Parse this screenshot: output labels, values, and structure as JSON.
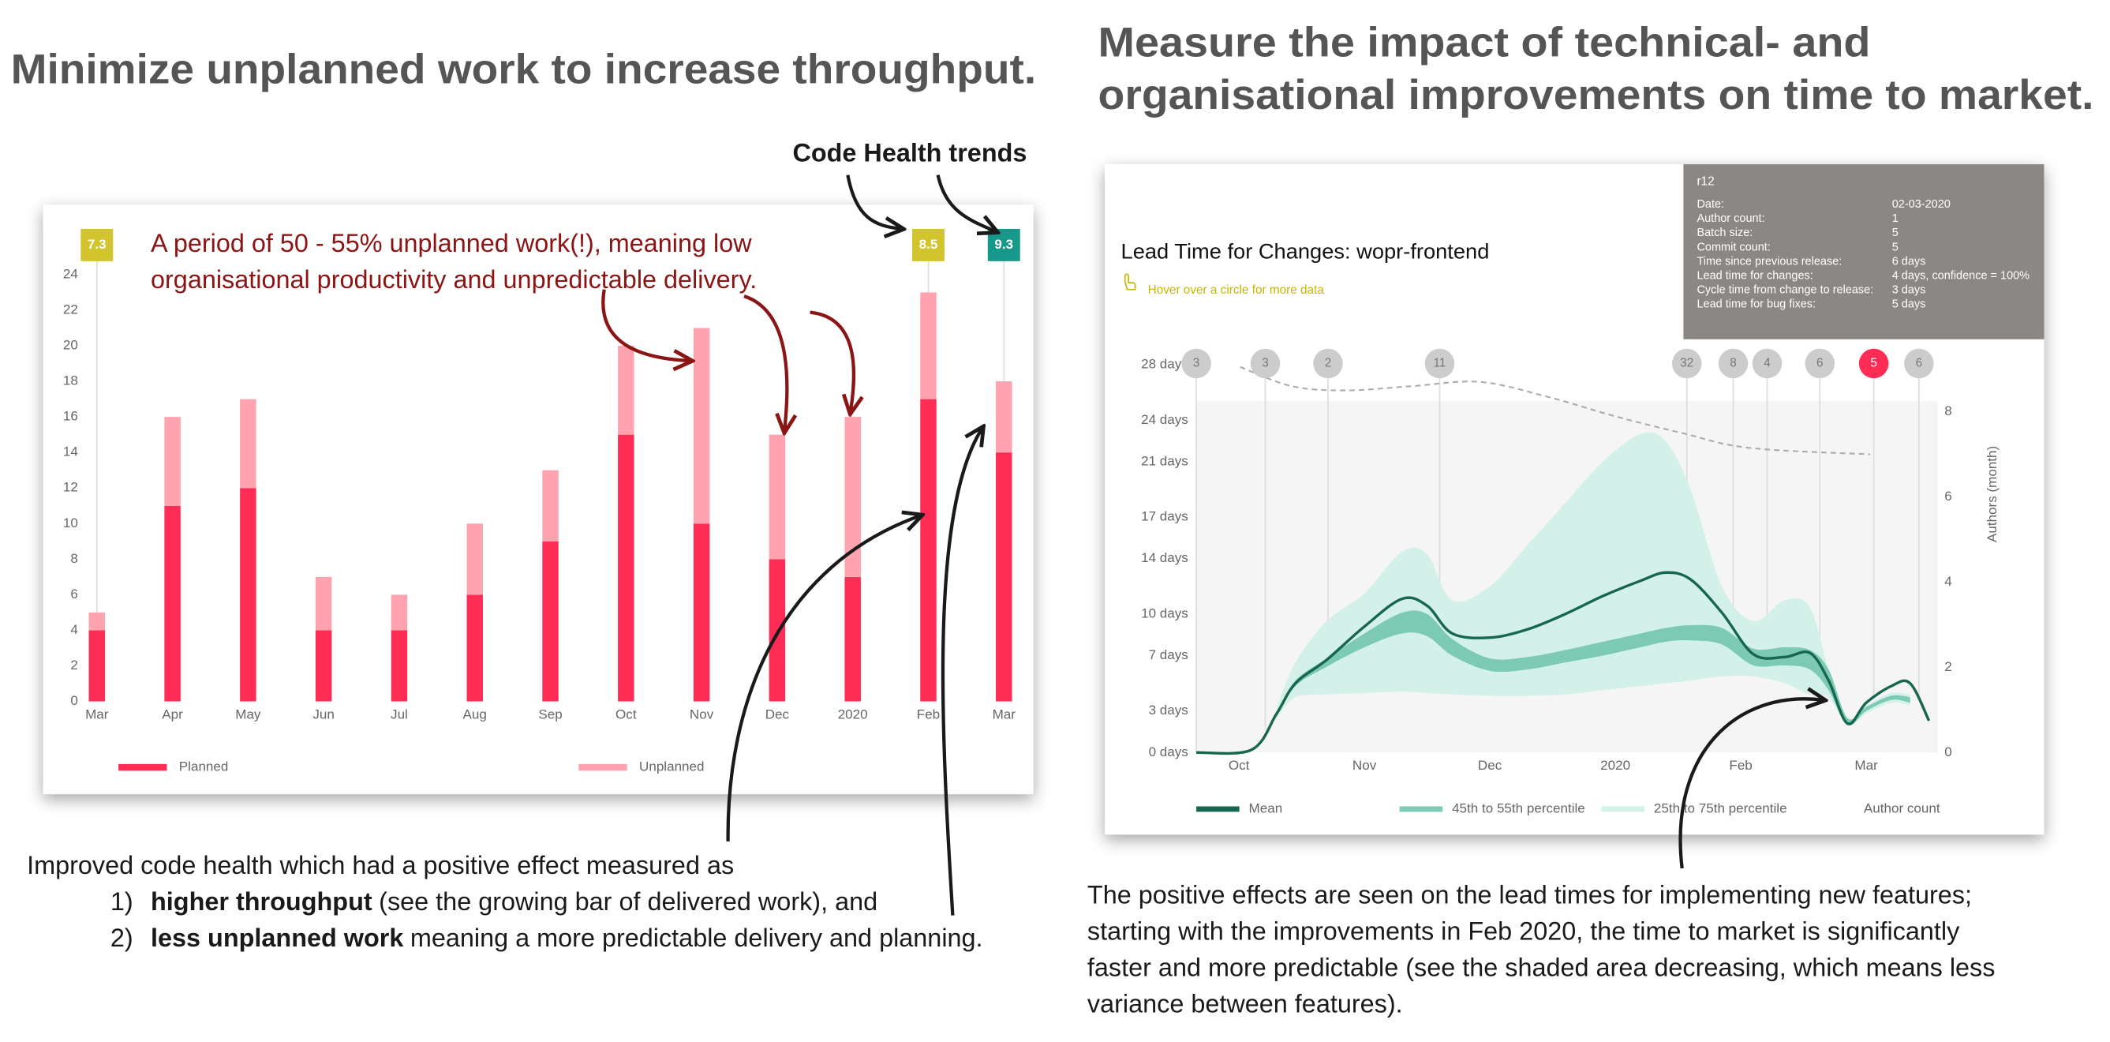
{
  "left_heading": "Minimize unplanned work to increase throughput.",
  "right_heading": [
    "Measure the impact of technical- and",
    "organisational improvements on time to market."
  ],
  "code_health_label": "Code Health trends",
  "left_note": {
    "intro": "Improved code health which had a positive effect measured as",
    "items": [
      {
        "number": "1)",
        "bold": "higher throughput",
        "rest": "(see the growing bar of delivered work), and"
      },
      {
        "number": "2)",
        "bold": "less unplanned work",
        "rest": "meaning a more predictable delivery and planning."
      }
    ]
  },
  "right_note": [
    "The positive effects are seen on the lead times for implementing new features;",
    "starting with the improvements in Feb 2020, the time to market is significantly",
    "faster and more predictable (see the shaded area decreasing, which means less",
    "variance between features)."
  ],
  "chart_data": [
    {
      "type": "bar",
      "stacked": true,
      "annotation": [
        "A period of 50 - 55% unplanned work(!), meaning low",
        "organisational productivity and unpredictable delivery."
      ],
      "categories": [
        "Mar",
        "Apr",
        "May",
        "Jun",
        "Jul",
        "Aug",
        "Sep",
        "Oct",
        "Nov",
        "Dec",
        "2020",
        "Feb",
        "Mar"
      ],
      "series": [
        {
          "name": "Planned",
          "color": "#ff2d55",
          "values": [
            4,
            11,
            12,
            4,
            4,
            6,
            9,
            15,
            10,
            8,
            7,
            17,
            14
          ]
        },
        {
          "name": "Unplanned",
          "color": "#ffa3b1",
          "values": [
            1,
            5,
            5,
            3,
            2,
            4,
            4,
            5,
            11,
            7,
            9,
            6,
            4
          ]
        }
      ],
      "ylim": [
        0,
        24
      ],
      "yticks": [
        0,
        2,
        4,
        6,
        8,
        10,
        12,
        14,
        16,
        18,
        20,
        22,
        24
      ],
      "code_health": {
        "values": [
          7.3,
          null,
          null,
          null,
          null,
          null,
          null,
          null,
          null,
          null,
          null,
          8.5,
          9.3
        ],
        "colors": [
          "#d1c42c",
          null,
          null,
          null,
          null,
          null,
          null,
          null,
          null,
          null,
          null,
          "#d1c42c",
          "#16998b"
        ]
      }
    },
    {
      "type": "area",
      "title": "Lead Time for Changes: wopr-frontend",
      "hint": "Hover over a circle for more data",
      "x": [
        -0.34,
        0.1,
        0.3,
        0.45,
        0.7,
        1.0,
        1.3,
        1.5,
        1.7,
        2.0,
        2.3,
        2.6,
        2.9,
        3.2,
        3.4,
        3.6,
        3.85,
        4.1,
        4.35,
        4.55,
        4.7,
        4.85,
        5.0,
        5.2,
        5.35,
        5.5
      ],
      "xlim": [
        -0.34,
        5.57
      ],
      "xticks": [
        {
          "value": 0,
          "label": "Oct"
        },
        {
          "value": 1,
          "label": "Nov"
        },
        {
          "value": 2,
          "label": "Dec"
        },
        {
          "value": 3,
          "label": "2020"
        },
        {
          "value": 4,
          "label": "Feb"
        },
        {
          "value": 5,
          "label": "Mar"
        }
      ],
      "ylim": [
        0,
        28
      ],
      "yticks": [
        {
          "value": 0,
          "label": "0 days"
        },
        {
          "value": 3,
          "label": "3 days"
        },
        {
          "value": 7,
          "label": "7 days"
        },
        {
          "value": 10,
          "label": "10 days"
        },
        {
          "value": 14,
          "label": "14 days"
        },
        {
          "value": 17,
          "label": "17 days"
        },
        {
          "value": 21,
          "label": "21 days"
        },
        {
          "value": 24,
          "label": "24 days"
        },
        {
          "value": 28,
          "label": "28 days"
        }
      ],
      "y2lim": [
        0,
        9.1
      ],
      "y2ticks": [
        0,
        2,
        4,
        6,
        8
      ],
      "y2_label": "Authors (month)",
      "series": [
        {
          "name": "Mean",
          "color": "#17664f",
          "values": [
            0,
            0.2,
            2.8,
            5.0,
            6.7,
            9.1,
            11.1,
            10.6,
            8.6,
            8.3,
            8.9,
            10.0,
            11.3,
            12.4,
            13.0,
            12.5,
            10.1,
            7.1,
            6.9,
            7.2,
            5.2,
            2.1,
            3.6,
            4.8,
            5.0,
            2.3
          ]
        },
        {
          "name": "45th to 55th percentile",
          "color": "#7dcab4",
          "low": [
            null,
            null,
            2.6,
            4.8,
            6.2,
            7.6,
            8.6,
            8.4,
            7.0,
            5.9,
            6.0,
            6.5,
            7.0,
            7.6,
            8.0,
            8.1,
            7.8,
            6.3,
            6.3,
            6.0,
            4.5,
            2.0,
            3.0,
            3.8,
            3.6,
            null
          ],
          "high": [
            null,
            null,
            2.9,
            5.2,
            6.8,
            8.6,
            10.1,
            10.0,
            8.2,
            6.8,
            6.9,
            7.4,
            8.0,
            8.6,
            9.0,
            9.2,
            9.0,
            7.5,
            7.6,
            7.4,
            6.0,
            2.5,
            3.3,
            4.1,
            4.0,
            null
          ]
        },
        {
          "name": "25th to 75th percentile",
          "color": "#d3f1e8",
          "low": [
            null,
            null,
            2.5,
            4.0,
            4.2,
            4.3,
            4.4,
            4.3,
            4.2,
            4.1,
            4.1,
            4.2,
            4.5,
            4.8,
            5.0,
            5.2,
            5.5,
            5.5,
            5.0,
            4.2,
            4.0,
            2.0,
            2.8,
            3.6,
            3.4,
            null
          ],
          "high": [
            null,
            null,
            3.2,
            6.5,
            9.5,
            11.5,
            14.5,
            14.3,
            11.0,
            12.0,
            15.0,
            18.0,
            21.0,
            23.0,
            22.5,
            19.0,
            12.0,
            9.5,
            11.0,
            10.5,
            6.0,
            2.5,
            3.4,
            4.3,
            4.2,
            null
          ]
        },
        {
          "name": "Author count",
          "color": "#aaaaaa",
          "axis": "y2",
          "dashed": true,
          "x": [
            0.01,
            0.42,
            0.85,
            1.38,
            1.92,
            2.46,
            2.99,
            3.53,
            4.07,
            5.03
          ],
          "values": [
            9.05,
            8.6,
            8.5,
            8.6,
            8.7,
            8.35,
            7.9,
            7.5,
            7.15,
            7.0
          ]
        }
      ],
      "releases": {
        "x": [
          -0.34,
          0.21,
          0.71,
          1.6,
          3.57,
          3.94,
          4.21,
          4.63,
          5.06,
          5.42
        ],
        "values": [
          3,
          3,
          2,
          11,
          32,
          8,
          4,
          6,
          5,
          6
        ],
        "colors": [
          "#cccccc",
          "#cccccc",
          "#cccccc",
          "#cccccc",
          "#cccccc",
          "#cccccc",
          "#cccccc",
          "#cccccc",
          "#ff2d55",
          "#cccccc"
        ]
      },
      "tooltip": {
        "title": "r12",
        "rows": [
          [
            "Date:",
            "02-03-2020"
          ],
          [
            "Author count:",
            "1"
          ],
          [
            "Batch size:",
            "5"
          ],
          [
            "Commit count:",
            "5"
          ],
          [
            "Time since previous release:",
            "6 days"
          ],
          [
            "Lead time for changes:",
            "4 days, confidence = 100%"
          ],
          [
            "Cycle time from change to release:",
            "3 days"
          ],
          [
            "Lead time for bug fixes:",
            "5 days"
          ]
        ]
      }
    }
  ]
}
